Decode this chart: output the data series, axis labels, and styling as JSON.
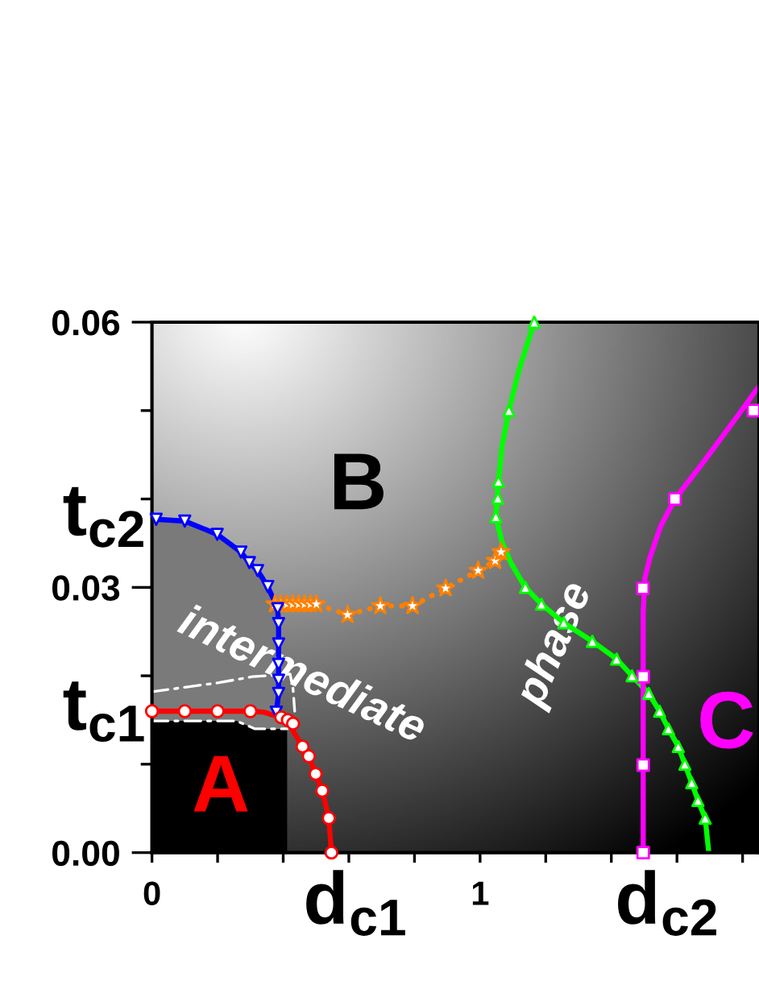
{
  "chart_data": {
    "type": "line",
    "xlim": [
      0,
      1.85
    ],
    "ylim": [
      0,
      0.06
    ],
    "xticks": [
      0,
      {
        "value": 0.2,
        "label": null
      },
      {
        "value": 0.4,
        "label": null
      },
      {
        "value": 0.6,
        "label": null
      },
      {
        "value": 0.8,
        "label": null
      },
      1,
      {
        "value": 1.2,
        "label": null
      },
      {
        "value": 1.4,
        "label": null
      },
      {
        "value": 1.6,
        "label": null
      },
      {
        "value": 1.8,
        "label": null
      }
    ],
    "yticks": [
      {
        "value": 0,
        "label": "0.00"
      },
      {
        "value": 0.01,
        "label": null
      },
      {
        "value": 0.02,
        "label": null
      },
      0.03,
      {
        "value": 0.04,
        "label": null
      },
      {
        "value": 0.05,
        "label": null
      },
      0.06
    ],
    "annotations": [
      "A",
      "B",
      "C",
      "intermediate",
      "phase",
      "t$_{c2}$",
      "t$_{c1}$",
      "d$_{c1}$",
      "d$_{c2}$"
    ],
    "series": [
      {
        "color": "#ff0000",
        "x": [
          0,
          0.1,
          0.2,
          0.3,
          0.34,
          0.373,
          0.41,
          0.434,
          0.459,
          0.478,
          0.499,
          0.519,
          0.539,
          0.547
        ],
        "values": [
          0.016,
          0.016,
          0.016,
          0.016,
          0.0159,
          0.0155,
          0.0151,
          0.0135,
          0.012,
          0.0109,
          0.0089,
          0.007,
          0.0039,
          0
        ]
      },
      {
        "type": "scatter",
        "color": "#ff0000",
        "marker": "circle",
        "x": [
          0,
          0.1,
          0.2,
          0.3,
          0.394,
          0.414,
          0.43,
          0.459,
          0.478,
          0.499,
          0.519,
          0.539,
          0.547
        ],
        "values": [
          0.016,
          0.016,
          0.016,
          0.016,
          0.0153,
          0.015,
          0.0146,
          0.012,
          0.0109,
          0.0089,
          0.007,
          0.0039,
          0
        ]
      },
      {
        "color": "#0000ff",
        "x": [
          0,
          0.013,
          0.1,
          0.199,
          0.271,
          0.297,
          0.322,
          0.353,
          0.383,
          0.386,
          0.386,
          0.386,
          0.386,
          0.386,
          0.379
        ],
        "values": [
          0.038,
          0.0377,
          0.0375,
          0.036,
          0.034,
          0.0328,
          0.0319,
          0.0301,
          0.0276,
          0.0259,
          0.0236,
          0.0213,
          0.0195,
          0.018,
          0.0159
        ]
      },
      {
        "type": "scatter",
        "color": "#0000ff",
        "marker": "triangle_down",
        "x": [
          0.013,
          0.1,
          0.199,
          0.271,
          0.297,
          0.322,
          0.353,
          0.383,
          0.386,
          0.386,
          0.386,
          0.386,
          0.386,
          0.379
        ],
        "values": [
          0.0377,
          0.0375,
          0.036,
          0.034,
          0.0328,
          0.0319,
          0.0301,
          0.0276,
          0.0259,
          0.0236,
          0.0213,
          0.0195,
          0.018,
          0.0159
        ]
      },
      {
        "color": "#ff8000",
        "line_style": "dotted",
        "x": [
          0.375,
          0.501,
          0.596,
          0.696,
          0.794,
          0.895,
          0.994,
          1.046,
          1.064
        ],
        "values": [
          0.0281,
          0.0281,
          0.0269,
          0.0279,
          0.0279,
          0.0299,
          0.0319,
          0.033,
          0.034
        ]
      },
      {
        "type": "scatter",
        "color": "#ff8000",
        "marker": "star",
        "x": [
          0.375,
          0.393,
          0.411,
          0.429,
          0.447,
          0.465,
          0.483,
          0.501,
          0.596,
          0.696,
          0.794,
          0.895,
          0.994,
          1.046,
          1.064
        ],
        "values": [
          0.0281,
          0.0281,
          0.0281,
          0.0281,
          0.0281,
          0.0281,
          0.0281,
          0.0281,
          0.0269,
          0.0279,
          0.0279,
          0.0299,
          0.0319,
          0.033,
          0.034
        ]
      },
      {
        "color": "#00ff00",
        "x": [
          1.165,
          1.118,
          1.088,
          1.067,
          1.056,
          1.048,
          1.067,
          1.095,
          1.138,
          1.187,
          1.255,
          1.342,
          1.416,
          1.463,
          1.514,
          1.547,
          1.574,
          1.604,
          1.624,
          1.645,
          1.664,
          1.686,
          1.697
        ],
        "values": [
          0.06,
          0.0545,
          0.05,
          0.046,
          0.042,
          0.038,
          0.0351,
          0.0327,
          0.03,
          0.0281,
          0.026,
          0.0239,
          0.0219,
          0.02,
          0.018,
          0.016,
          0.014,
          0.012,
          0.01,
          0.0079,
          0.0059,
          0.0039,
          0
        ]
      },
      {
        "type": "scatter",
        "color": "#00ff00",
        "marker": "triangle",
        "x": [
          1.165,
          1.088,
          1.056,
          1.054,
          1.048,
          1.138,
          1.187,
          1.255,
          1.342,
          1.416,
          1.463,
          1.514,
          1.547,
          1.574,
          1.604,
          1.624,
          1.645,
          1.664,
          1.686
        ],
        "values": [
          0.06,
          0.05,
          0.042,
          0.0401,
          0.038,
          0.03,
          0.0281,
          0.026,
          0.0239,
          0.0219,
          0.02,
          0.018,
          0.016,
          0.014,
          0.012,
          0.01,
          0.0079,
          0.0059,
          0.0039
        ]
      },
      {
        "color": "#ff00ff",
        "x": [
          1.497,
          1.497,
          1.497,
          1.497,
          1.502,
          1.517,
          1.55,
          1.594,
          1.681,
          1.779,
          1.849
        ],
        "values": [
          0,
          0.01,
          0.02,
          0.027,
          0.031,
          0.0333,
          0.0369,
          0.04,
          0.0442,
          0.0491,
          0.0527
        ]
      },
      {
        "type": "scatter",
        "color": "#ff00ff",
        "marker": "square",
        "x": [
          1.497,
          1.497,
          1.497,
          1.496,
          1.594,
          1.833
        ],
        "values": [
          0,
          0.0099,
          0.0199,
          0.0299,
          0.04,
          0.05
        ]
      },
      {
        "color": "#ffffff",
        "line_style": "dashdot",
        "x": [
          0,
          0.1,
          0.2,
          0.306,
          0.421,
          0.43,
          0.435
        ],
        "values": [
          0.0182,
          0.0187,
          0.0192,
          0.0199,
          0.0202,
          0.0185,
          0.016
        ]
      },
      {
        "color": "#ffffff",
        "line_style": "dashdot",
        "x": [
          0,
          0.257,
          0.314,
          0.412
        ],
        "values": [
          0.0149,
          0.0149,
          0.014,
          0.014
        ]
      }
    ]
  }
}
